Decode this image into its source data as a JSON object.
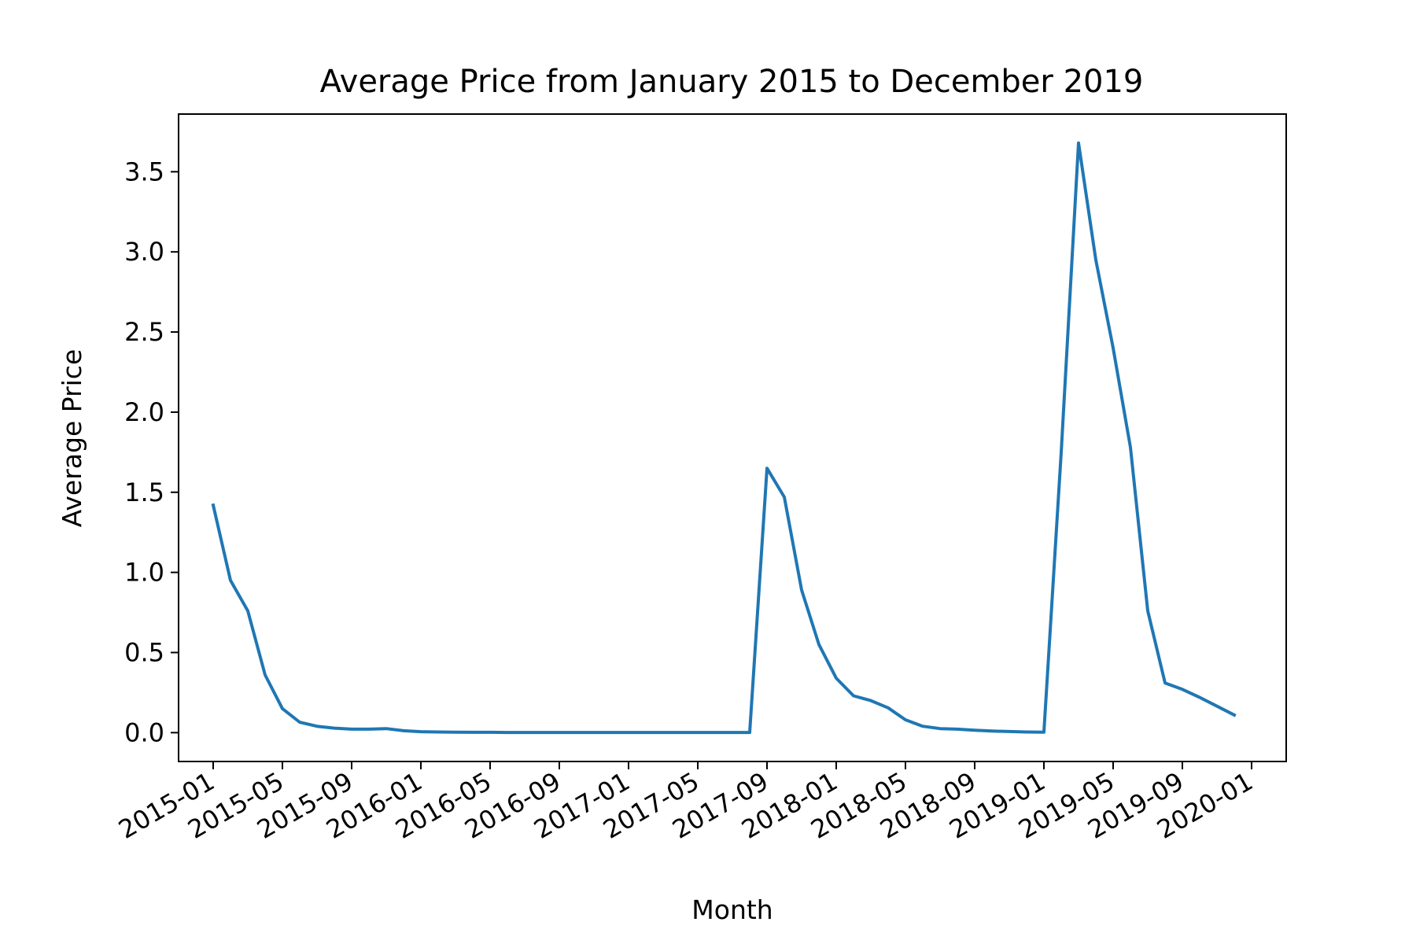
{
  "chart_data": {
    "type": "line",
    "title": "Average Price from January 2015 to December 2019",
    "xlabel": "Month",
    "ylabel": "Average Price",
    "x_tick_labels": [
      "2015-01",
      "2015-05",
      "2015-09",
      "2016-01",
      "2016-05",
      "2016-09",
      "2017-01",
      "2017-05",
      "2017-09",
      "2018-01",
      "2018-05",
      "2018-09",
      "2019-01",
      "2019-05",
      "2019-09",
      "2020-01"
    ],
    "y_tick_labels": [
      "0.0",
      "0.5",
      "1.0",
      "1.5",
      "2.0",
      "2.5",
      "3.0",
      "3.5"
    ],
    "y_ticks": [
      0,
      0.5,
      1.0,
      1.5,
      2.0,
      2.5,
      3.0,
      3.5
    ],
    "xlim": [
      "2014-11",
      "2020-03"
    ],
    "ylim": [
      -0.18,
      3.86
    ],
    "grid": false,
    "line_color": "#1f77b4",
    "series": [
      {
        "x": [
          "2015-01",
          "2015-02",
          "2015-03",
          "2015-04",
          "2015-05",
          "2015-06",
          "2015-07",
          "2015-08",
          "2015-09",
          "2015-10",
          "2015-11",
          "2015-12",
          "2016-01",
          "2016-02",
          "2016-03",
          "2016-04",
          "2016-05",
          "2016-06",
          "2016-07",
          "2016-08",
          "2016-09",
          "2016-10",
          "2016-11",
          "2016-12",
          "2017-01",
          "2017-02",
          "2017-03",
          "2017-04",
          "2017-05",
          "2017-06",
          "2017-07",
          "2017-08",
          "2017-09",
          "2017-10",
          "2017-11",
          "2017-12",
          "2018-01",
          "2018-02",
          "2018-03",
          "2018-04",
          "2018-05",
          "2018-06",
          "2018-07",
          "2018-08",
          "2018-09",
          "2018-10",
          "2018-11",
          "2018-12",
          "2019-01",
          "2019-02",
          "2019-03",
          "2019-04",
          "2019-05",
          "2019-06",
          "2019-07",
          "2019-08",
          "2019-09",
          "2019-10",
          "2019-11",
          "2019-12"
        ],
        "values": [
          1.42,
          0.95,
          0.76,
          0.36,
          0.15,
          0.065,
          0.04,
          0.028,
          0.022,
          0.022,
          0.025,
          0.012,
          0.006,
          0.004,
          0.003,
          0.002,
          0.002,
          0.001,
          0.001,
          0.001,
          0.001,
          0.001,
          0.001,
          0.001,
          0.001,
          0.001,
          0.001,
          0.001,
          0.001,
          0.001,
          0.001,
          0.001,
          1.65,
          1.47,
          0.89,
          0.55,
          0.34,
          0.23,
          0.2,
          0.155,
          0.08,
          0.04,
          0.025,
          0.022,
          0.015,
          0.01,
          0.007,
          0.004,
          0.003,
          1.75,
          3.68,
          2.95,
          2.4,
          1.78,
          0.76,
          0.31,
          0.27,
          0.22,
          0.165,
          0.11
        ]
      }
    ]
  }
}
